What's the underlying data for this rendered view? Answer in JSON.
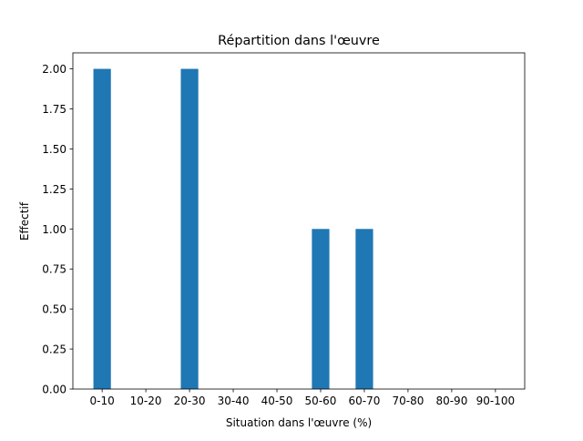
{
  "chart_data": {
    "type": "bar",
    "title": "Répartition dans l'œuvre",
    "xlabel": "Situation dans l'œuvre (%)",
    "ylabel": "Effectif",
    "categories": [
      "0-10",
      "10-20",
      "20-30",
      "30-40",
      "40-50",
      "50-60",
      "60-70",
      "70-80",
      "80-90",
      "90-100"
    ],
    "values": [
      2,
      0,
      2,
      0,
      0,
      1,
      1,
      0,
      0,
      0
    ],
    "ylim": [
      0,
      2.1
    ],
    "yticks": [
      "0.00",
      "0.25",
      "0.50",
      "0.75",
      "1.00",
      "1.25",
      "1.50",
      "1.75",
      "2.00"
    ],
    "grid": false,
    "bar_color": "#1f77b4"
  }
}
